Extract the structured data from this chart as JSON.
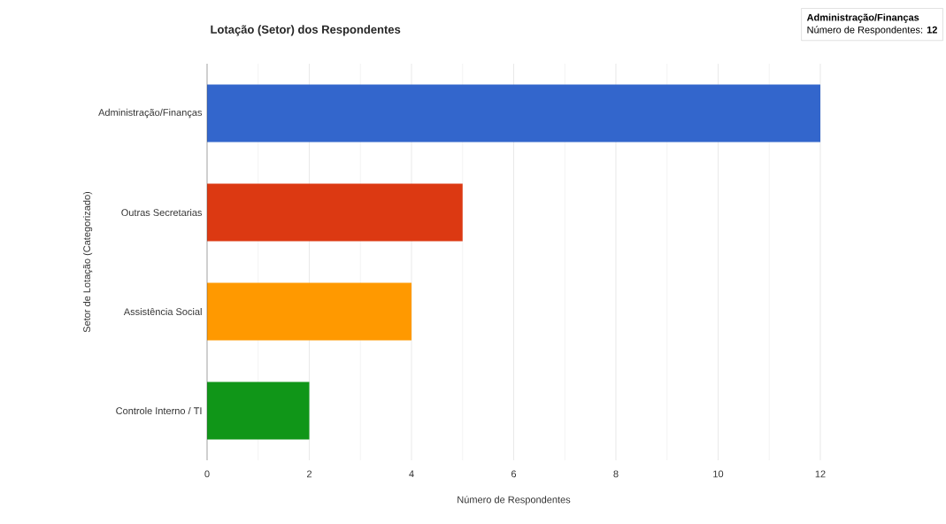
{
  "chart_data": {
    "type": "bar",
    "orientation": "horizontal",
    "title": "Lotação (Setor) dos Respondentes",
    "xlabel": "Número de Respondentes",
    "ylabel": "Setor de Lotação (Categorizado)",
    "categories": [
      "Administração/Finanças",
      "Outras Secretarias",
      "Assistência Social",
      "Controle Interno / TI"
    ],
    "values": [
      12,
      5,
      4,
      2
    ],
    "colors": [
      "#3366cc",
      "#dc3912",
      "#ff9900",
      "#109618"
    ],
    "xlim": [
      0,
      12
    ],
    "xticks": [
      0,
      2,
      4,
      6,
      8,
      10,
      12
    ],
    "grid": "x",
    "annotations": [
      "**Administração/Finanças**",
      "Número de Respondentes: **12**"
    ]
  }
}
